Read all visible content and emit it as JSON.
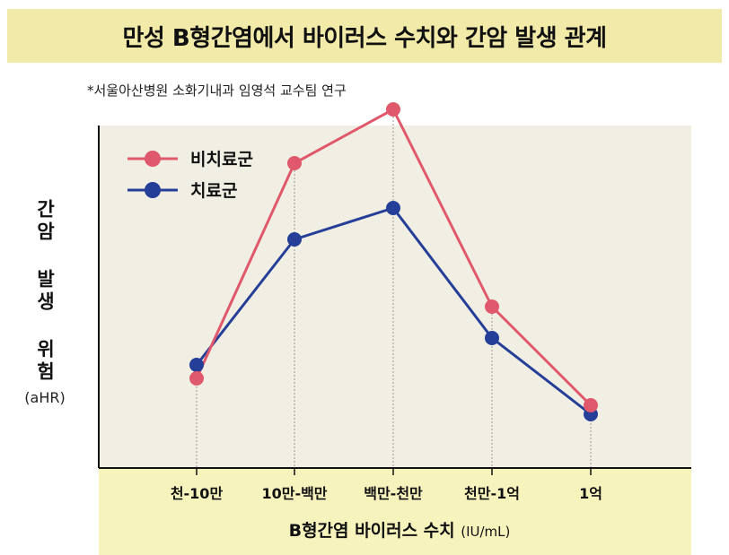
{
  "title": "만성 B형간염에서 바이러스 수치와 간암 발생 관계",
  "source_note": "*서울아산병원 소화기내과 임영석 교수팀 연구",
  "colors": {
    "title_band": "#f1eaa8",
    "plot_bg": "#f1efe3",
    "xaxis_band": "#f7f3bd",
    "untreated": "#e0586c",
    "treated": "#253f98"
  },
  "chart_data": {
    "type": "line",
    "ylabel": "간암 발생 위험",
    "ylabel_unit": "(aHR)",
    "xlabel": "B형간염 바이러스 수치",
    "xlabel_unit": "(IU/mL)",
    "categories": [
      "천-10만",
      "10만-백만",
      "백만-천만",
      "천만-1억",
      "1억"
    ],
    "y_ticks_shown": false,
    "grid": "vertical dotted lines at each category",
    "legend_position": "top-left",
    "series": [
      {
        "name": "비치료군",
        "color": "#e0586c",
        "values": [
          1.0,
          3.4,
          4.0,
          1.8,
          0.7
        ]
      },
      {
        "name": "치료군",
        "color": "#253f98",
        "values": [
          1.15,
          2.55,
          2.9,
          1.45,
          0.6
        ]
      }
    ]
  }
}
